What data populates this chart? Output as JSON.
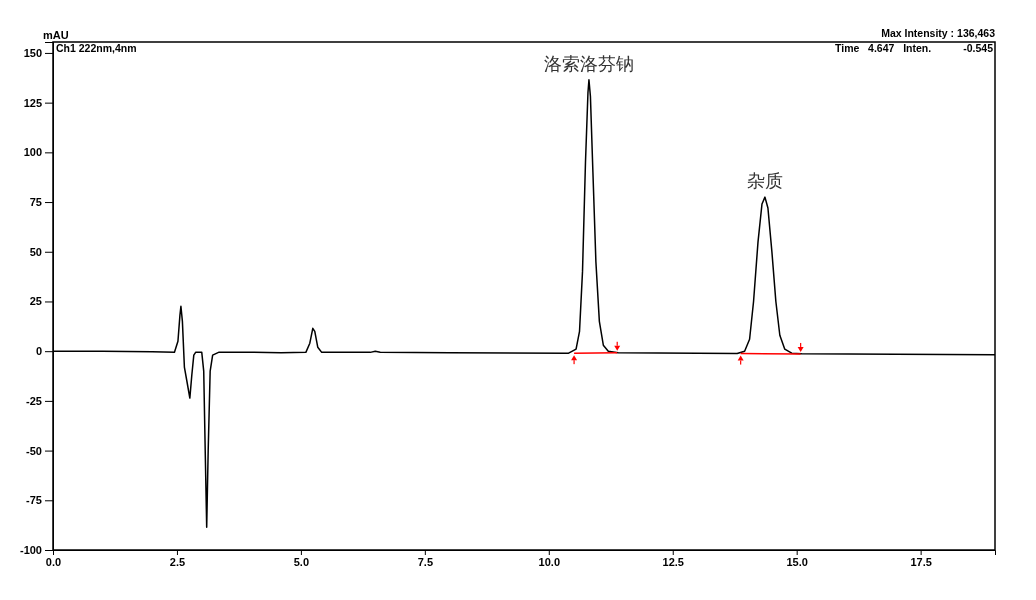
{
  "chart_data": {
    "type": "line",
    "ylabel": "mAU",
    "annotations": [
      "Ch1 222nm,4nm",
      "Max Intensity : 136,463",
      "Time   4.647   Inten.           -0.545",
      {
        "text": "洛索洛芬钠",
        "x": 10.81,
        "y": 136.5
      },
      {
        "text": "杂质",
        "x": 14.36,
        "y": 77.5
      }
    ],
    "xlim": [
      0,
      19
    ],
    "ylim": [
      -100,
      155.5
    ],
    "xticks": [
      {
        "value": 0,
        "label": "0.0"
      },
      {
        "value": 2.5,
        "label": "2.5"
      },
      {
        "value": 5,
        "label": "5.0"
      },
      {
        "value": 7.5,
        "label": "7.5"
      },
      {
        "value": 10,
        "label": "10.0"
      },
      {
        "value": 12.5,
        "label": "12.5"
      },
      {
        "value": 15,
        "label": "15.0"
      },
      {
        "value": 17.5,
        "label": "17.5"
      }
    ],
    "yticks": [
      -100,
      -75,
      -50,
      -25,
      0,
      25,
      50,
      75,
      100,
      125,
      150
    ],
    "grid": false,
    "line_style": "solid",
    "marker": "none",
    "series": [
      {
        "color": "#000000",
        "x": [
          0,
          1,
          2,
          2.45,
          2.52,
          2.56,
          2.58,
          2.61,
          2.65,
          2.7,
          2.76,
          2.8,
          2.84,
          2.88,
          3.0,
          3.04,
          3.07,
          3.1,
          3.13,
          3.17,
          3.22,
          3.35,
          4.0,
          4.6,
          5.1,
          5.18,
          5.24,
          5.28,
          5.34,
          5.42,
          6.4,
          6.5,
          6.6,
          8,
          10.4,
          10.55,
          10.62,
          10.68,
          10.74,
          10.79,
          10.81,
          10.84,
          10.89,
          10.95,
          11.02,
          11.1,
          11.2,
          11.4,
          13.8,
          13.95,
          14.05,
          14.13,
          14.22,
          14.3,
          14.36,
          14.42,
          14.5,
          14.58,
          14.66,
          14.76,
          14.9,
          15.1,
          17,
          19
        ],
        "values": [
          0,
          0,
          -0.3,
          -0.5,
          5,
          18,
          22.6,
          15,
          -8,
          -15,
          -23.6,
          -12,
          -2,
          -0.5,
          -0.5,
          -10,
          -50,
          -88.5,
          -50,
          -10,
          -2,
          -0.5,
          -0.5,
          -0.8,
          -0.6,
          4,
          11.5,
          10,
          2,
          -0.6,
          -0.6,
          0,
          -0.5,
          -0.8,
          -1,
          1,
          10,
          40,
          95,
          130,
          136.5,
          128,
          90,
          45,
          15,
          3,
          0,
          -0.8,
          -1.2,
          0,
          6,
          25,
          55,
          74,
          77.5,
          72,
          50,
          25,
          8,
          1,
          -1,
          -1.3,
          -1.5,
          -1.8
        ]
      },
      {
        "color": "#ff0000",
        "x": [
          10.51,
          11.38,
          null,
          13.87,
          15.08
        ],
        "values": [
          -1,
          -0.8,
          null,
          -1.2,
          -1.4
        ]
      }
    ]
  }
}
